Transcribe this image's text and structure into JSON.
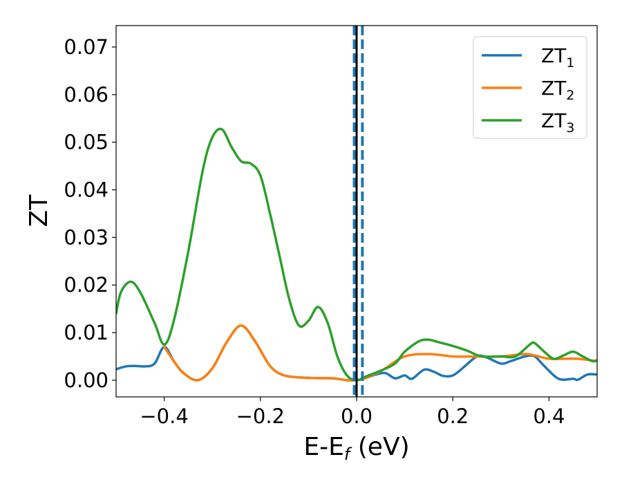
{
  "chart_data": {
    "type": "line",
    "xlabel": "E-E",
    "xlabel_sub": "f",
    "xlabel_unit": " (eV)",
    "ylabel": "ZT",
    "xlim": [
      -0.5,
      0.5
    ],
    "ylim": [
      -0.0035,
      0.0745
    ],
    "xticks": [
      -0.4,
      -0.2,
      0.0,
      0.2,
      0.4
    ],
    "xtick_labels": [
      "−0.4",
      "−0.2",
      "0.0",
      "0.2",
      "0.4"
    ],
    "yticks": [
      0.0,
      0.01,
      0.02,
      0.03,
      0.04,
      0.05,
      0.06,
      0.07
    ],
    "ytick_labels": [
      "0.00",
      "0.01",
      "0.02",
      "0.03",
      "0.04",
      "0.05",
      "0.06",
      "0.07"
    ],
    "grid": false,
    "legend_position": "top-right",
    "vlines": [
      {
        "x": 0.0,
        "color": "#000000",
        "style": "solid"
      },
      {
        "x": -0.005,
        "color": "#1f77b4",
        "style": "dashed"
      },
      {
        "x": 0.012,
        "color": "#1f77b4",
        "style": "dashed"
      }
    ],
    "series": [
      {
        "name": "ZT",
        "name_sub": "1",
        "color": "#1f77b4",
        "points": [
          [
            -0.5,
            0.0023
          ],
          [
            -0.48,
            0.0029
          ],
          [
            -0.46,
            0.003
          ],
          [
            -0.44,
            0.0029
          ],
          [
            -0.42,
            0.0035
          ],
          [
            -0.4,
            0.007
          ],
          [
            -0.38,
            0.004
          ],
          [
            -0.36,
            0.0015
          ],
          [
            -0.33,
            0.0
          ],
          [
            -0.3,
            0.0025
          ],
          [
            -0.27,
            0.008
          ],
          [
            -0.24,
            0.0115
          ],
          [
            -0.21,
            0.008
          ],
          [
            -0.18,
            0.003
          ],
          [
            -0.15,
            0.001
          ],
          [
            -0.1,
            0.0005
          ],
          [
            -0.05,
            0.0004
          ],
          [
            -0.02,
            0.0
          ],
          [
            0.0,
            0.0
          ],
          [
            0.02,
            0.0005
          ],
          [
            0.04,
            0.0012
          ],
          [
            0.06,
            0.0015
          ],
          [
            0.08,
            0.0004
          ],
          [
            0.1,
            0.001
          ],
          [
            0.115,
            0.0003
          ],
          [
            0.14,
            0.0022
          ],
          [
            0.16,
            0.0018
          ],
          [
            0.18,
            0.0009
          ],
          [
            0.2,
            0.001
          ],
          [
            0.22,
            0.0025
          ],
          [
            0.25,
            0.005
          ],
          [
            0.27,
            0.0048
          ],
          [
            0.3,
            0.0035
          ],
          [
            0.32,
            0.004
          ],
          [
            0.35,
            0.005
          ],
          [
            0.37,
            0.005
          ],
          [
            0.39,
            0.003
          ],
          [
            0.42,
            0.0003
          ],
          [
            0.45,
            0.0003
          ],
          [
            0.46,
            0.0001
          ],
          [
            0.48,
            0.0012
          ],
          [
            0.5,
            0.0012
          ]
        ]
      },
      {
        "name": "ZT",
        "name_sub": "2",
        "color": "#ff7f0e",
        "points": [
          [
            -0.4,
            0.007
          ],
          [
            -0.38,
            0.004
          ],
          [
            -0.36,
            0.0015
          ],
          [
            -0.33,
            0.0
          ],
          [
            -0.3,
            0.0025
          ],
          [
            -0.27,
            0.008
          ],
          [
            -0.24,
            0.0115
          ],
          [
            -0.21,
            0.008
          ],
          [
            -0.18,
            0.003
          ],
          [
            -0.15,
            0.001
          ],
          [
            -0.1,
            0.0005
          ],
          [
            -0.05,
            0.0004
          ],
          [
            -0.02,
            0.0
          ],
          [
            0.0,
            0.0
          ],
          [
            0.02,
            0.0005
          ],
          [
            0.04,
            0.0014
          ],
          [
            0.06,
            0.0025
          ],
          [
            0.1,
            0.005
          ],
          [
            0.15,
            0.0055
          ],
          [
            0.2,
            0.005
          ],
          [
            0.25,
            0.005
          ],
          [
            0.3,
            0.005
          ],
          [
            0.35,
            0.0055
          ],
          [
            0.37,
            0.0052
          ],
          [
            0.4,
            0.0045
          ],
          [
            0.43,
            0.0045
          ],
          [
            0.46,
            0.0045
          ],
          [
            0.5,
            0.004
          ]
        ]
      },
      {
        "name": "ZT",
        "name_sub": "3",
        "color": "#2ca02c",
        "points": [
          [
            -0.5,
            0.014
          ],
          [
            -0.49,
            0.0185
          ],
          [
            -0.47,
            0.0207
          ],
          [
            -0.45,
            0.0185
          ],
          [
            -0.42,
            0.012
          ],
          [
            -0.4,
            0.0075
          ],
          [
            -0.38,
            0.0125
          ],
          [
            -0.35,
            0.027
          ],
          [
            -0.32,
            0.044
          ],
          [
            -0.3,
            0.051
          ],
          [
            -0.28,
            0.0527
          ],
          [
            -0.26,
            0.049
          ],
          [
            -0.24,
            0.046
          ],
          [
            -0.22,
            0.0455
          ],
          [
            -0.2,
            0.043
          ],
          [
            -0.18,
            0.035
          ],
          [
            -0.16,
            0.026
          ],
          [
            -0.14,
            0.017
          ],
          [
            -0.12,
            0.0115
          ],
          [
            -0.1,
            0.0125
          ],
          [
            -0.08,
            0.0154
          ],
          [
            -0.06,
            0.012
          ],
          [
            -0.04,
            0.005
          ],
          [
            -0.02,
            0.001
          ],
          [
            0.0,
            0.0
          ],
          [
            0.02,
            0.0008
          ],
          [
            0.05,
            0.002
          ],
          [
            0.08,
            0.0035
          ],
          [
            0.1,
            0.006
          ],
          [
            0.13,
            0.0082
          ],
          [
            0.15,
            0.0085
          ],
          [
            0.17,
            0.008
          ],
          [
            0.2,
            0.0072
          ],
          [
            0.23,
            0.0062
          ],
          [
            0.26,
            0.005
          ],
          [
            0.3,
            0.005
          ],
          [
            0.33,
            0.005
          ],
          [
            0.36,
            0.0075
          ],
          [
            0.37,
            0.0078
          ],
          [
            0.39,
            0.006
          ],
          [
            0.41,
            0.0045
          ],
          [
            0.43,
            0.0052
          ],
          [
            0.45,
            0.006
          ],
          [
            0.47,
            0.005
          ],
          [
            0.49,
            0.004
          ],
          [
            0.5,
            0.0042
          ]
        ]
      }
    ]
  }
}
